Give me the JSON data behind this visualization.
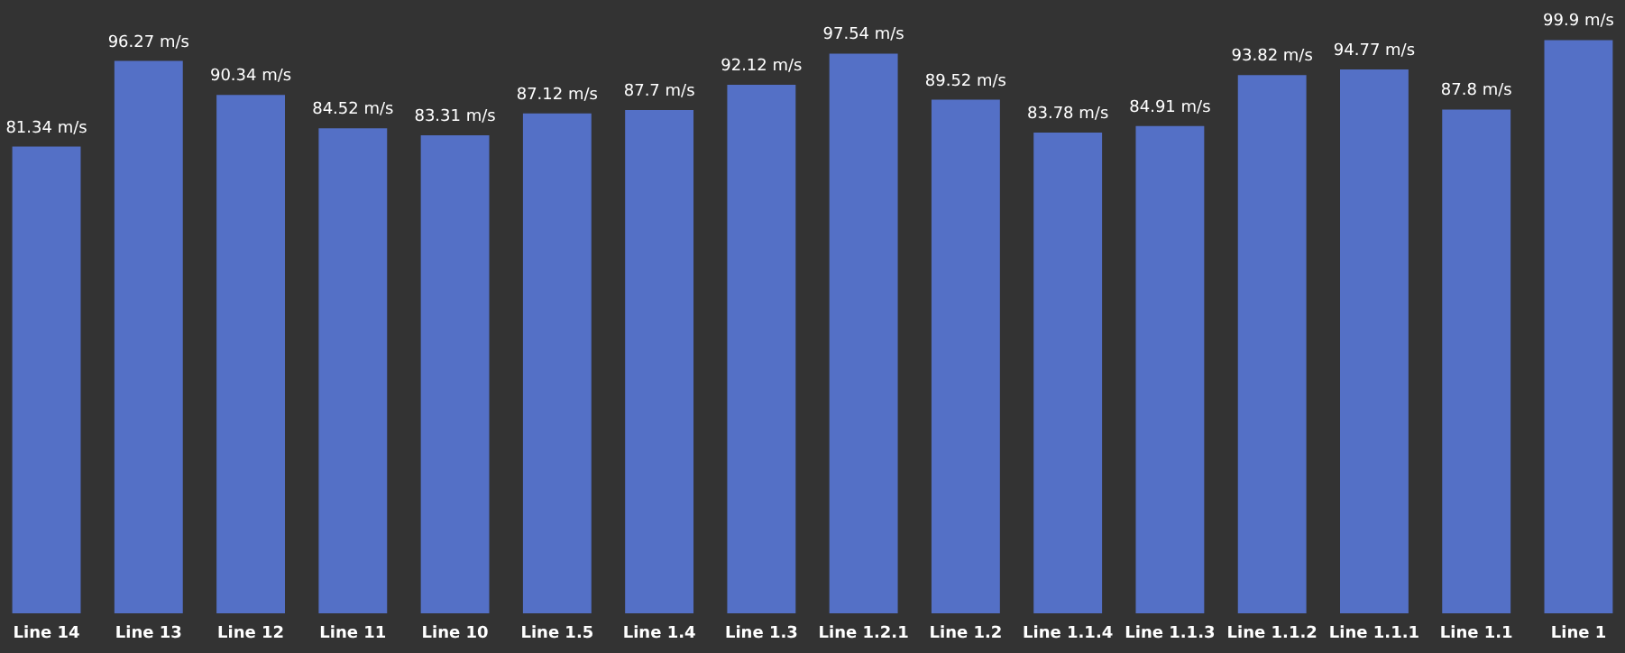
{
  "chart_data": {
    "type": "bar",
    "categories": [
      "Line 14",
      "Line 13",
      "Line 12",
      "Line 11",
      "Line 10",
      "Line 1.5",
      "Line 1.4",
      "Line 1.3",
      "Line 1.2.1",
      "Line 1.2",
      "Line 1.1.4",
      "Line 1.1.3",
      "Line 1.1.2",
      "Line 1.1.1",
      "Line 1.1",
      "Line 1"
    ],
    "values": [
      81.34,
      96.27,
      90.34,
      84.52,
      83.31,
      87.12,
      87.7,
      92.12,
      97.54,
      89.52,
      83.78,
      84.91,
      93.82,
      94.77,
      87.8,
      99.9
    ],
    "value_labels": [
      "81.34 m/s",
      "96.27 m/s",
      "90.34 m/s",
      "84.52 m/s",
      "83.31 m/s",
      "87.12 m/s",
      "87.7 m/s",
      "92.12 m/s",
      "97.54 m/s",
      "89.52 m/s",
      "83.78 m/s",
      "84.91 m/s",
      "93.82 m/s",
      "94.77 m/s",
      "87.8 m/s",
      "99.9 m/s"
    ],
    "color": "#5470c6"
  }
}
